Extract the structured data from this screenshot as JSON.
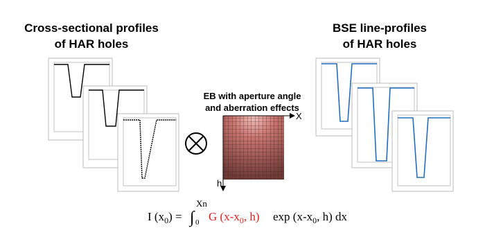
{
  "left_title": [
    "Cross-sectional profiles",
    "of HAR holes"
  ],
  "right_title": [
    "BSE line-profiles",
    "of HAR holes"
  ],
  "center_label": [
    "EB with aperture angle",
    "and aberration effects"
  ],
  "axis_x": "X",
  "axis_h": "h",
  "formula": {
    "lhs": "I (x",
    "lhs_sub": "0",
    "lhs_end": ") =",
    "integral": "∫",
    "lower": "0",
    "upper": "Xn",
    "kernel": "G (x-x",
    "kernel_sub": "0",
    "kernel_end": ", h)",
    "profile": "exp (x-x",
    "profile_sub": "0",
    "profile_end": ", h) dx"
  }
}
